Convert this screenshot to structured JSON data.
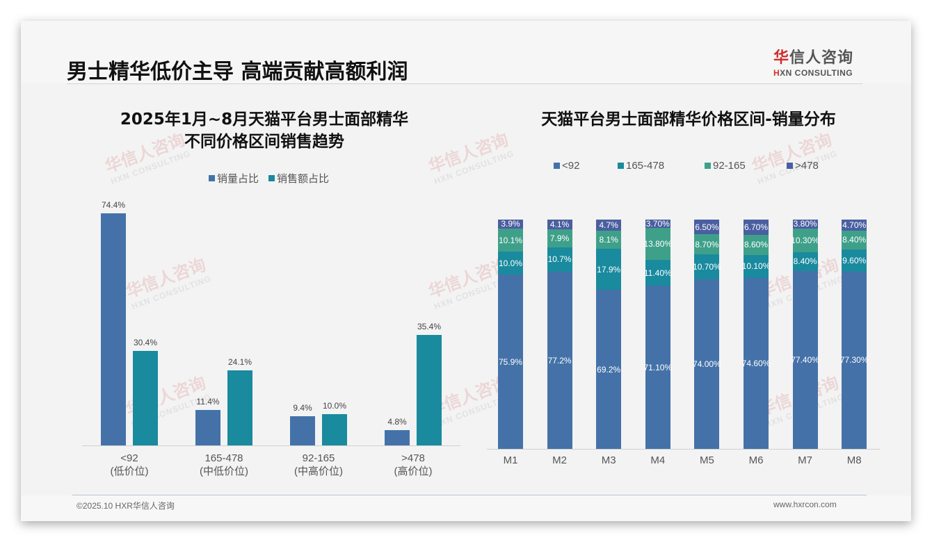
{
  "page": {
    "title": "男士精华低价主导 高端贡献高额利润"
  },
  "logo": {
    "cn_first": "华",
    "cn_rest": "信人咨询",
    "en_first": "H",
    "en_rest": "XN CONSULTING"
  },
  "watermark": {
    "cn": "华信人咨询",
    "en": "HXN CONSULTING"
  },
  "footer": {
    "copyright": "©2025.10 HXR华信人咨询",
    "website": "www.hxrcon.com"
  },
  "colors": {
    "sales_volume": "#4472a8",
    "sales_amount": "#1a8a9e",
    "lt92": "#4472a8",
    "r165_478": "#1a8a9e",
    "r92_165": "#3fa08a",
    "gt478": "#4a5fa0"
  },
  "chart_data": [
    {
      "type": "bar",
      "title": "2025年1月~8月天猫平台男士面部精华 不同价格区间销售趋势",
      "title_line1": "2025年1月~8月天猫平台男士面部精华",
      "title_line2": "不同价格区间销售趋势",
      "categories": [
        "<92",
        "165-478",
        "92-165",
        ">478"
      ],
      "category_sublabels": [
        "(低价位)",
        "(中低价位)",
        "(中高价位)",
        "(高价位)"
      ],
      "series": [
        {
          "name": "销量占比",
          "values": [
            74.4,
            11.4,
            9.4,
            4.8
          ],
          "labels": [
            "74.4%",
            "11.4%",
            "9.4%",
            "4.8%"
          ]
        },
        {
          "name": "销售额占比",
          "values": [
            30.4,
            24.1,
            10.0,
            35.4
          ],
          "labels": [
            "30.4%",
            "24.1%",
            "10.0%",
            "35.4%"
          ]
        }
      ],
      "legend": [
        "销量占比",
        "销售额占比"
      ],
      "legend_position": "top",
      "xlabel": "",
      "ylabel": "",
      "grid": false,
      "ylim": [
        0,
        80
      ]
    },
    {
      "type": "bar",
      "stacked": true,
      "title": "天猫平台男士面部精华价格区间-销量分布",
      "categories": [
        "M1",
        "M2",
        "M3",
        "M4",
        "M5",
        "M6",
        "M7",
        "M8"
      ],
      "series": [
        {
          "name": "<92",
          "values": [
            75.9,
            77.2,
            69.2,
            71.1,
            74.0,
            74.6,
            77.4,
            77.3
          ],
          "labels": [
            "75.9%",
            "77.2%",
            "69.2%",
            "71.10%",
            "74.00%",
            "74.60%",
            "77.40%",
            "77.30%"
          ]
        },
        {
          "name": "165-478",
          "values": [
            10.0,
            10.7,
            17.9,
            11.4,
            10.7,
            10.1,
            8.4,
            9.6
          ],
          "labels": [
            "10.0%",
            "10.7%",
            "17.9%",
            "11.40%",
            "10.70%",
            "10.10%",
            "8.40%",
            "9.60%"
          ]
        },
        {
          "name": "92-165",
          "values": [
            10.1,
            7.9,
            8.1,
            13.8,
            8.7,
            8.6,
            10.3,
            8.4
          ],
          "labels": [
            "10.1%",
            "7.9%",
            "8.1%",
            "13.80%",
            "8.70%",
            "8.60%",
            "10.30%",
            "8.40%"
          ]
        },
        {
          "name": ">478",
          "values": [
            3.9,
            4.1,
            4.7,
            3.7,
            6.5,
            6.7,
            3.8,
            4.7
          ],
          "labels": [
            "3.9%",
            "4.1%",
            "4.7%",
            "3.70%",
            "6.50%",
            "6.70%",
            "3.80%",
            "4.70%"
          ]
        }
      ],
      "legend": [
        "<92",
        "165-478",
        "92-165",
        ">478"
      ],
      "legend_position": "top",
      "xlabel": "",
      "ylabel": "",
      "grid": false,
      "ylim": [
        0,
        100
      ]
    }
  ]
}
